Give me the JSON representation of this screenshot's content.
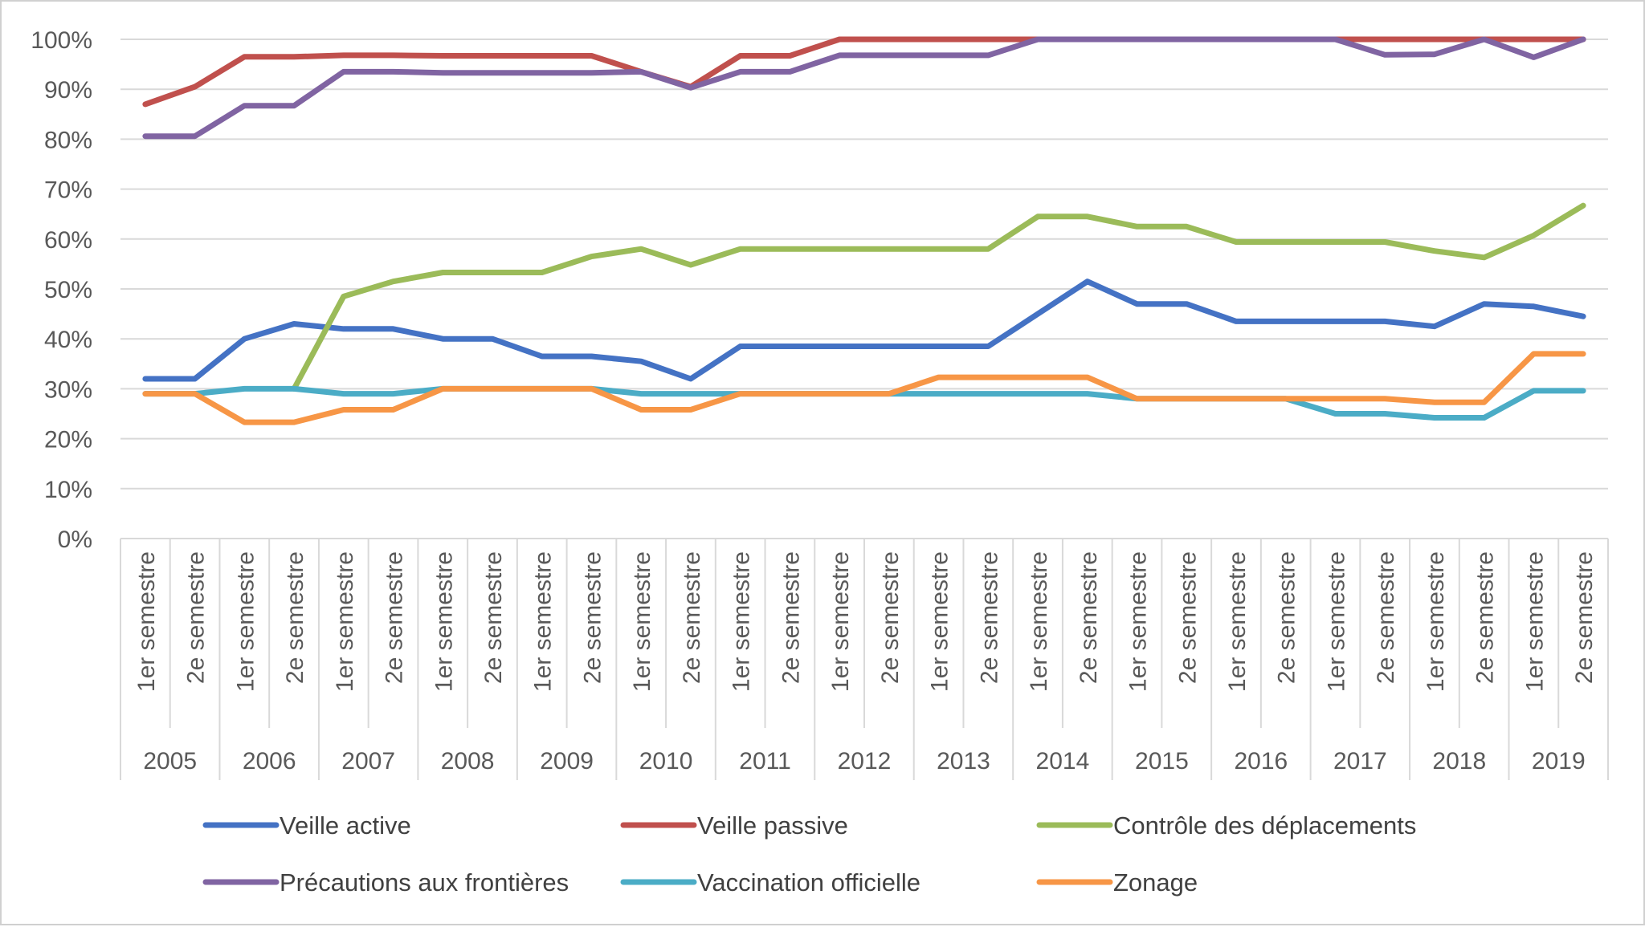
{
  "chart_data": {
    "type": "line",
    "y_axis": {
      "min": 0,
      "max": 100,
      "tick_labels": [
        "0%",
        "10%",
        "20%",
        "30%",
        "40%",
        "50%",
        "60%",
        "70%",
        "80%",
        "90%",
        "100%"
      ],
      "grid": true
    },
    "x_axis": {
      "semester_labels": [
        "1er semestre",
        "2e semestre"
      ],
      "years": [
        "2005",
        "2006",
        "2007",
        "2008",
        "2009",
        "2010",
        "2011",
        "2012",
        "2013",
        "2014",
        "2015",
        "2016",
        "2017",
        "2018",
        "2019"
      ]
    },
    "legend_position": "bottom",
    "series": [
      {
        "name": "Veille active",
        "color": "#4472C4",
        "values": [
          32,
          32,
          40,
          43,
          42,
          42,
          40,
          40,
          36.5,
          36.5,
          35.5,
          32,
          38.5,
          38.5,
          38.5,
          38.5,
          38.5,
          38.5,
          45,
          51.5,
          47,
          47,
          43.5,
          43.5,
          43.5,
          43.5,
          42.5,
          47,
          46.5,
          44.5
        ]
      },
      {
        "name": "Veille passive",
        "color": "#C0504D",
        "values": [
          87,
          90.5,
          96.5,
          96.5,
          96.8,
          96.8,
          96.7,
          96.7,
          96.7,
          96.7,
          93.5,
          90.5,
          96.7,
          96.7,
          100,
          100,
          100,
          100,
          100,
          100,
          100,
          100,
          100,
          100,
          100,
          100,
          100,
          100,
          100,
          100
        ]
      },
      {
        "name": "Contrôle des déplacements",
        "color": "#9BBB59",
        "values": [
          null,
          null,
          null,
          30,
          48.5,
          51.5,
          53.3,
          53.3,
          53.3,
          56.5,
          58,
          54.8,
          58,
          58,
          58,
          58,
          58,
          58,
          64.5,
          64.5,
          62.5,
          62.5,
          59.4,
          59.4,
          59.4,
          59.4,
          57.6,
          56.3,
          60.7,
          66.7
        ]
      },
      {
        "name": "Précautions aux frontières",
        "color": "#8064A2",
        "values": [
          80.6,
          80.6,
          86.7,
          86.7,
          93.5,
          93.5,
          93.3,
          93.3,
          93.3,
          93.3,
          93.5,
          90.3,
          93.5,
          93.5,
          96.8,
          96.8,
          96.8,
          96.8,
          100,
          100,
          100,
          100,
          100,
          100,
          100,
          96.9,
          97,
          100,
          96.4,
          100
        ]
      },
      {
        "name": "Vaccination officielle",
        "color": "#4BACC6",
        "values": [
          29,
          29,
          30,
          30,
          29,
          29,
          30,
          30,
          30,
          30,
          29,
          29,
          29,
          29,
          29,
          29,
          29,
          29,
          29,
          29,
          28,
          28,
          28,
          28,
          25,
          25,
          24.2,
          24.2,
          29.6,
          29.6
        ]
      },
      {
        "name": "Zonage",
        "color": "#F79646",
        "values": [
          29,
          29,
          23.3,
          23.3,
          25.8,
          25.8,
          30,
          30,
          30,
          30,
          25.8,
          25.8,
          29,
          29,
          29,
          29,
          32.3,
          32.3,
          32.3,
          32.3,
          28,
          28,
          28,
          28,
          28,
          28,
          27.3,
          27.3,
          37,
          37
        ]
      }
    ]
  }
}
